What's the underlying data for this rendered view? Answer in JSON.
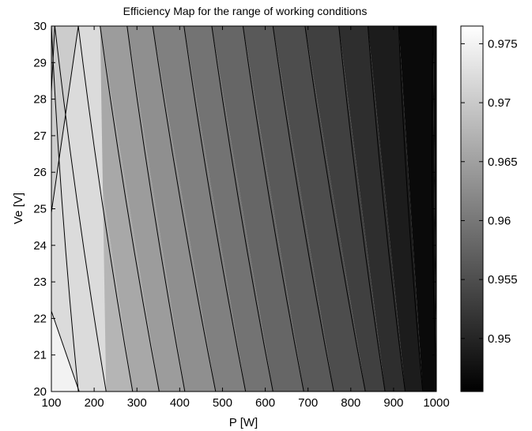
{
  "chart_data": {
    "type": "filled-contour",
    "title": "Efficiency Map for the range of working conditions",
    "xlabel": "P [W]",
    "ylabel": "Ve [V]",
    "xlim": [
      100,
      1000
    ],
    "ylim": [
      20,
      30
    ],
    "x_ticks": [
      "100",
      "200",
      "300",
      "400",
      "500",
      "600",
      "700",
      "800",
      "900",
      "1000"
    ],
    "y_ticks": [
      "20",
      "21",
      "22",
      "23",
      "24",
      "25",
      "26",
      "27",
      "28",
      "29",
      "30"
    ],
    "colorbar": {
      "colormap": "gray",
      "range": [
        0.9455,
        0.9765
      ],
      "ticks": [
        "0.95",
        "0.955",
        "0.96",
        "0.965",
        "0.97",
        "0.975"
      ]
    },
    "contour_lines": [
      {
        "x_at_Ve30": 100,
        "x_at_Ve20": 163
      },
      {
        "x_at_Ve30": 108,
        "x_at_Ve20": 228
      },
      {
        "x_at_Ve30": 163,
        "x_at_Ve20": 290
      },
      {
        "x_at_Ve30": 214,
        "x_at_Ve20": 352
      },
      {
        "x_at_Ve30": 277,
        "x_at_Ve20": 412
      },
      {
        "x_at_Ve30": 337,
        "x_at_Ve20": 484
      },
      {
        "x_at_Ve30": 410,
        "x_at_Ve20": 554
      },
      {
        "x_at_Ve30": 475,
        "x_at_Ve20": 618
      },
      {
        "x_at_Ve30": 548,
        "x_at_Ve20": 690
      },
      {
        "x_at_Ve30": 618,
        "x_at_Ve20": 760
      },
      {
        "x_at_Ve30": 693,
        "x_at_Ve20": 834
      },
      {
        "x_at_Ve30": 772,
        "x_at_Ve20": 880
      },
      {
        "x_at_Ve30": 840,
        "x_at_Ve20": 927
      },
      {
        "x_at_Ve30": 912,
        "x_at_Ve20": 968
      },
      {
        "x_at_Ve30": 992,
        "x_at_Ve20": 1000
      }
    ],
    "extra_contours": [
      {
        "points": [
          [
            100,
            28.2
          ],
          [
            108,
            30
          ]
        ]
      },
      {
        "points": [
          [
            100,
            24.9
          ],
          [
            163,
            30
          ]
        ]
      },
      {
        "points": [
          [
            100,
            22.2
          ],
          [
            165,
            20
          ]
        ]
      }
    ],
    "region_gray_levels_left_to_right": [
      0.94,
      0.88,
      0.82,
      0.76,
      0.71,
      0.66,
      0.61,
      0.56,
      0.5,
      0.45,
      0.4,
      0.35,
      0.3,
      0.25,
      0.18,
      0.11,
      0.04
    ]
  }
}
